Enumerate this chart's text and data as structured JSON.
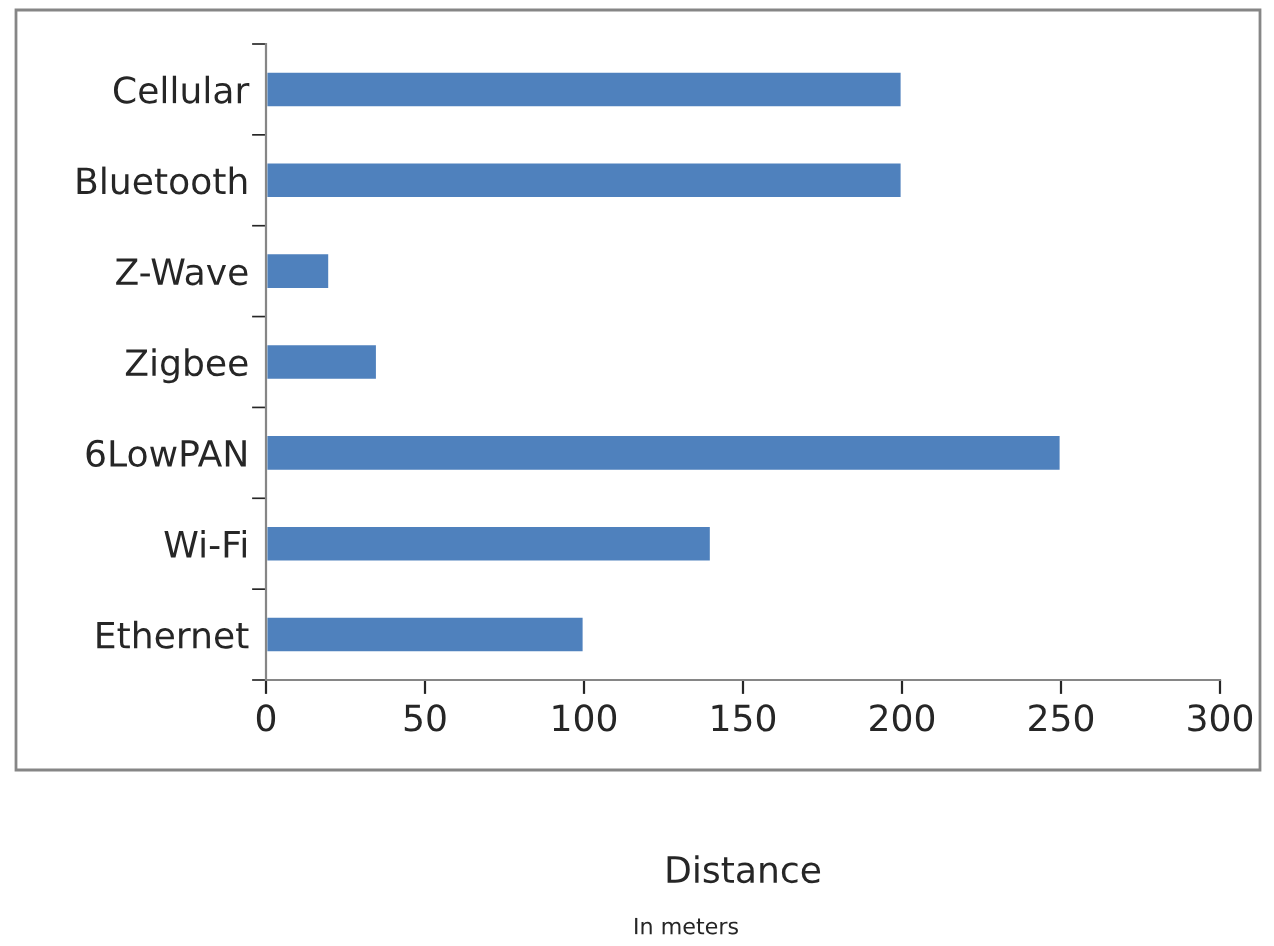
{
  "chart_data": {
    "type": "bar",
    "orientation": "horizontal",
    "categories": [
      "Cellular",
      "Bluetooth",
      "Z-Wave",
      "Zigbee",
      "6LowPAN",
      "Wi-Fi",
      "Ethernet"
    ],
    "values": [
      200,
      200,
      20,
      35,
      250,
      140,
      100
    ],
    "color": "#4f81bd",
    "xlim": [
      0,
      300
    ],
    "xticks": [
      0,
      50,
      100,
      150,
      200,
      250,
      300
    ],
    "grid": false,
    "legend": false,
    "xlabel": "Distance",
    "annotations": [
      "In meters"
    ]
  }
}
